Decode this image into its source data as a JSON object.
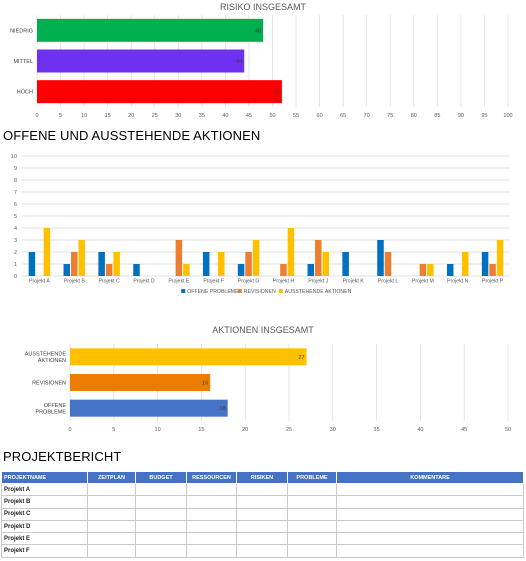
{
  "risk_chart": {
    "title": "RISIKO INSGESAMT",
    "chart_data": {
      "type": "bar",
      "orientation": "horizontal",
      "categories": [
        "NIEDRIG",
        "MITTEL",
        "HOCH"
      ],
      "values": [
        48,
        44,
        52
      ],
      "colors": [
        "#00b050",
        "#7030f0",
        "#ff0000"
      ],
      "xlim": [
        0,
        100
      ],
      "xticks": [
        0,
        5,
        10,
        15,
        20,
        25,
        30,
        35,
        40,
        45,
        50,
        55,
        60,
        65,
        70,
        75,
        80,
        85,
        90,
        95,
        100
      ],
      "grid": true
    }
  },
  "actions_section": {
    "title": "OFFENE UND AUSSTEHENDE AKTIONEN"
  },
  "actions_chart": {
    "chart_data": {
      "type": "bar",
      "categories": [
        "Projekt A",
        "Projekt B",
        "Projekt C",
        "Projekt D",
        "Projekt E",
        "Projekt F",
        "Projekt G",
        "Projekt H",
        "Projekt J",
        "Projekt K",
        "Projekt L",
        "Projekt M",
        "Projekt N",
        "Projekt P"
      ],
      "series": [
        {
          "name": "OFFENE PROBLEME",
          "color": "#0070c0",
          "values": [
            2,
            1,
            2,
            1,
            0,
            2,
            1,
            0,
            1,
            2,
            3,
            0,
            1,
            2
          ]
        },
        {
          "name": "REVISIONEN",
          "color": "#ed7d31",
          "values": [
            0,
            2,
            1,
            0,
            3,
            0,
            2,
            1,
            3,
            0,
            2,
            1,
            0,
            1
          ]
        },
        {
          "name": "AUSSTEHENDE AKTIONEN",
          "color": "#ffc000",
          "values": [
            4,
            3,
            2,
            0,
            1,
            2,
            3,
            4,
            2,
            0,
            0,
            1,
            2,
            3
          ]
        }
      ],
      "ylim": [
        0,
        10
      ],
      "yticks": [
        0,
        1,
        2,
        3,
        4,
        5,
        6,
        7,
        8,
        9,
        10
      ],
      "grid": true,
      "legend": "bottom"
    }
  },
  "total_actions_chart": {
    "title": "AKTIONEN INSGESAMT",
    "chart_data": {
      "type": "bar",
      "orientation": "horizontal",
      "categories": [
        [
          "AUSSTEHENDE",
          "AKTIONEN"
        ],
        [
          "REVISIONEN"
        ],
        [
          "OFFENE",
          "PROBLEME"
        ]
      ],
      "values": [
        27,
        16,
        18
      ],
      "colors": [
        "#ffc000",
        "#ed7d00",
        "#4472c4"
      ],
      "xlim": [
        0,
        50
      ],
      "xticks": [
        0,
        5,
        10,
        15,
        20,
        25,
        30,
        35,
        40,
        45,
        50
      ],
      "grid": true
    }
  },
  "report": {
    "title": "PROJEKTBERICHT",
    "columns": [
      "PROJEKTNAME",
      "ZEITPLAN",
      "BUDGET",
      "RESSOURCEN",
      "RISIKEN",
      "PROBLEME",
      "KOMMENTARE"
    ],
    "rows": [
      "Projekt A",
      "Projekt B",
      "Projekt C",
      "Projekt D",
      "Projekt E",
      "Projekt F"
    ]
  }
}
